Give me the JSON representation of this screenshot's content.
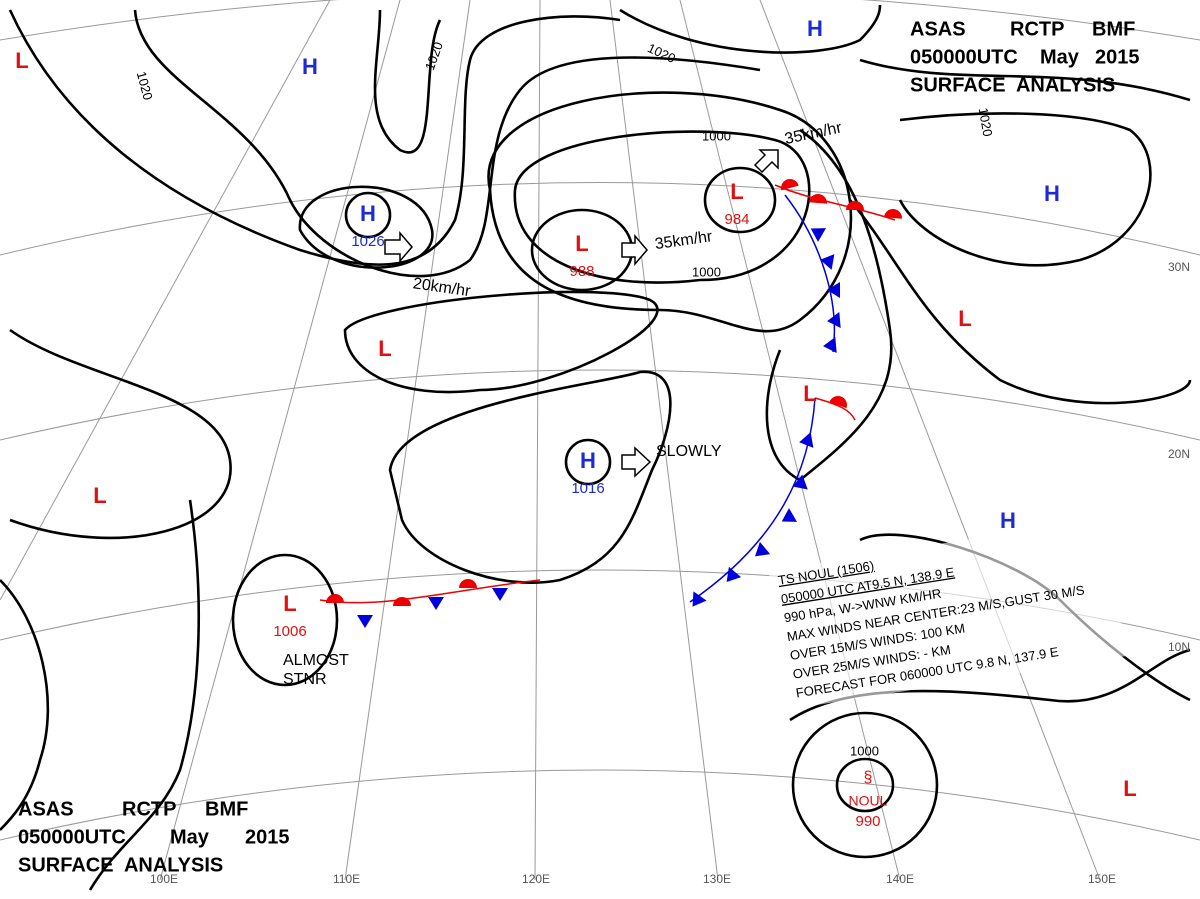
{
  "header": {
    "line1": [
      "ASAS",
      "RCTP",
      "BMF"
    ],
    "line2": [
      "050000UTC",
      "May",
      "2015"
    ],
    "line3": "SURFACE  ANALYSIS"
  },
  "systems": [
    {
      "type": "L"
    },
    {
      "type": "H"
    },
    {
      "type": "H"
    },
    {
      "type": "H",
      "pressure": 1026
    },
    {
      "type": "L",
      "pressure": 988
    },
    {
      "type": "L",
      "pressure": 984
    },
    {
      "type": "L"
    },
    {
      "type": "L"
    },
    {
      "type": "H",
      "pressure": 1016
    },
    {
      "type": "L"
    },
    {
      "type": "L"
    },
    {
      "type": "H"
    },
    {
      "type": "H"
    },
    {
      "type": "L",
      "pressure": 1006
    },
    {
      "type": "L"
    },
    {
      "type": "L",
      "name": "NOUL",
      "pressure": 990
    }
  ],
  "isobar_labels": [
    1020,
    1020,
    1020,
    1020,
    1000,
    1000,
    1000
  ],
  "annotations": [
    "35km/hr",
    "35km/hr",
    "20km/hr",
    "SLOWLY",
    "ALMOST",
    "STNR"
  ],
  "storm_info": [
    "TS  NOUL  (1506)",
    "050000 UTC  AT9.5 N, 138.9 E",
    "990 hPa, W->WNW  KM/HR",
    "MAX WINDS NEAR CENTER:23 M/S,GUST 30 M/S",
    "OVER 15M/S WINDS: 100 KM",
    "OVER 25M/S WINDS: - KM",
    "FORECAST FOR 060000 UTC 9.8 N, 137.9 E"
  ],
  "grid_labels": {
    "lat": [
      "30N",
      "20N",
      "10N"
    ],
    "lon": [
      "100E",
      "110E",
      "120E",
      "130E",
      "140E",
      "150E"
    ]
  }
}
